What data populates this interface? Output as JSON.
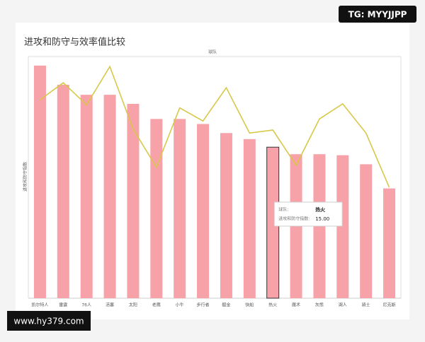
{
  "chart_data": {
    "type": "bar",
    "title": "进攻和防守与效率值比较",
    "x_label": "球队",
    "y_label": "进攻和防守指数",
    "categories": [
      "凯尔特人",
      "雷霆",
      "76人",
      "活塞",
      "太阳",
      "老鹰",
      "小牛",
      "步行者",
      "掘金",
      "快船",
      "热火",
      "魔术",
      "灰熊",
      "湖人",
      "骑士",
      "尼克斯"
    ],
    "series": [
      {
        "name": "进攻和防守指数",
        "type": "bar",
        "color": "#f7a1a9",
        "values": [
          23.1,
          21.2,
          20.2,
          20.2,
          19.3,
          17.8,
          17.8,
          17.3,
          16.4,
          15.8,
          15.0,
          14.3,
          14.3,
          14.2,
          13.3,
          10.9
        ],
        "value_labels": [
          null,
          null,
          null,
          null,
          null,
          null,
          null,
          null,
          null,
          null,
          "15.00",
          null,
          null,
          null,
          null,
          null
        ]
      },
      {
        "type": "line",
        "color": "#d8c84a",
        "values": [
          19.7,
          21.4,
          19.2,
          23.0,
          16.8,
          13.0,
          18.9,
          17.6,
          20.9,
          16.4,
          16.7,
          13.2,
          17.8,
          19.3,
          16.4,
          11.0
        ]
      }
    ],
    "ylim": [
      0,
      24
    ],
    "tooltip": {
      "index": 10,
      "category_label": "球队:",
      "value_label": "进攻和防守指数:"
    }
  },
  "watermarks": {
    "top": "TG: MYYJJPP",
    "bottom": "www.hy379.com"
  }
}
